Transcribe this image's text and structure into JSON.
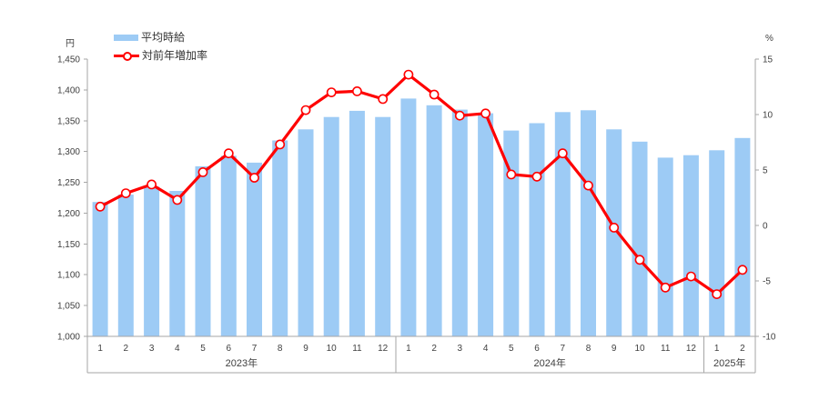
{
  "chart_data": {
    "type": "bar+line combo",
    "title": "",
    "axis_color": "#A6A6A6",
    "label_color": "#404040",
    "left_axis": {
      "unit": "円",
      "min": 1000,
      "max": 1450,
      "step": 50,
      "tick_labels": [
        "1,000",
        "1,050",
        "1,100",
        "1,150",
        "1,200",
        "1,250",
        "1,300",
        "1,350",
        "1,400",
        "1,450"
      ]
    },
    "right_axis": {
      "unit": "%",
      "min": -10,
      "max": 15,
      "step": 5,
      "tick_labels": [
        "-10",
        "-5",
        "0",
        "5",
        "10",
        "15"
      ]
    },
    "month_labels": [
      "1",
      "2",
      "3",
      "4",
      "5",
      "6",
      "7",
      "8",
      "9",
      "10",
      "11",
      "12",
      "1",
      "2",
      "3",
      "4",
      "5",
      "6",
      "7",
      "8",
      "9",
      "10",
      "11",
      "12",
      "1",
      "2"
    ],
    "year_groups": [
      {
        "label": "2023年",
        "months": 12
      },
      {
        "label": "2024年",
        "months": 12
      },
      {
        "label": "2025年",
        "months": 2
      }
    ],
    "legend_position": "top-left",
    "grid": false,
    "series": [
      {
        "name": "平均時給",
        "type": "bar",
        "axis": "left",
        "color": "#9DCBF5",
        "values": [
          1218,
          1230,
          1243,
          1236,
          1276,
          1293,
          1282,
          1318,
          1336,
          1356,
          1366,
          1356,
          1386,
          1375,
          1368,
          1362,
          1334,
          1346,
          1364,
          1367,
          1336,
          1316,
          1290,
          1294,
          1302,
          1322
        ]
      },
      {
        "name": "対前年増加率",
        "type": "line",
        "axis": "right",
        "color": "#FF0000",
        "marker_fill": "#FFFFFF",
        "values": [
          1.7,
          2.9,
          3.7,
          2.3,
          4.8,
          6.5,
          4.3,
          7.3,
          10.4,
          12.0,
          12.1,
          11.4,
          13.6,
          11.8,
          9.9,
          10.1,
          4.6,
          4.4,
          6.5,
          3.6,
          -0.2,
          -3.1,
          -5.6,
          -4.6,
          -6.2,
          -4.0
        ]
      }
    ]
  }
}
